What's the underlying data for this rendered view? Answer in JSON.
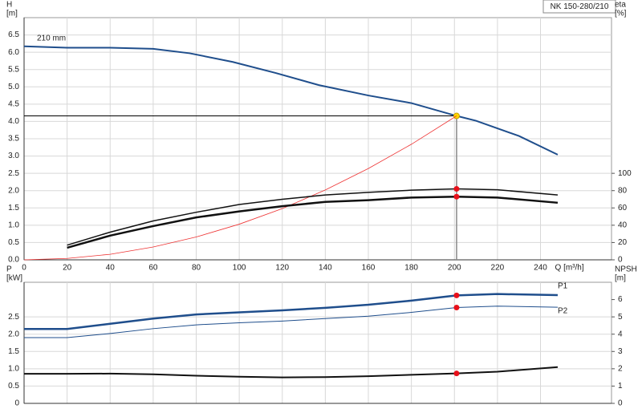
{
  "chart_data": [
    {
      "type": "line",
      "title": "NK 150-280/210",
      "ylabel": "H",
      "yunit": "[m]",
      "y2label": "eta",
      "y2unit": "[%]",
      "xlabel": "Q [m³/h]",
      "xlim": [
        0,
        273
      ],
      "xticks": [
        0,
        20,
        40,
        60,
        80,
        100,
        120,
        140,
        160,
        180,
        200,
        220,
        240
      ],
      "ylim": [
        0,
        7
      ],
      "yticks": [
        {
          "value": 0,
          "label": "0.0"
        },
        0.5,
        {
          "value": 1,
          "label": "1.0"
        },
        1.5,
        {
          "value": 2,
          "label": "2.0"
        },
        2.5,
        {
          "value": 3,
          "label": "3.0"
        },
        3.5,
        {
          "value": 4,
          "label": "4.0"
        },
        4.5,
        {
          "value": 5,
          "label": "5.0"
        },
        5.5,
        {
          "value": 6,
          "label": "6.0"
        },
        6.5
      ],
      "y2lim": [
        0,
        280
      ],
      "y2ticks": [
        0,
        20,
        40,
        60,
        80,
        100
      ],
      "grid": true,
      "xtick_labels": true,
      "operating_point": {
        "x": 201,
        "y": 4.16
      },
      "series": [
        {
          "name": "210 mm",
          "color": "#1f4e8c",
          "width": 2,
          "marker": "#ffd700",
          "x": [
            0,
            20,
            40,
            60,
            77,
            97,
            117,
            137,
            160,
            180,
            201,
            210,
            230,
            248
          ],
          "values": [
            6.17,
            6.13,
            6.13,
            6.1,
            5.97,
            5.72,
            5.4,
            5.05,
            4.75,
            4.53,
            4.16,
            4.02,
            3.58,
            3.04
          ]
        },
        {
          "color": "#ee3333",
          "width": 0.8,
          "x": [
            0,
            20,
            40,
            60,
            80,
            100,
            120,
            140,
            160,
            180,
            201
          ],
          "values": [
            0,
            0.04,
            0.16,
            0.37,
            0.66,
            1.03,
            1.48,
            2.02,
            2.64,
            3.34,
            4.16
          ]
        },
        {
          "color": "#111111",
          "width": 1.5,
          "axis": "y2",
          "marker": "#e8101a",
          "x": [
            20,
            40,
            60,
            80,
            100,
            120,
            140,
            160,
            180,
            201,
            220,
            248
          ],
          "values": [
            17,
            32,
            45,
            55,
            64,
            70,
            75,
            78,
            80.5,
            82,
            81,
            75
          ]
        },
        {
          "color": "#111111",
          "width": 2.5,
          "axis": "y2",
          "marker": "#e8101a",
          "x": [
            20,
            40,
            60,
            80,
            100,
            120,
            140,
            160,
            180,
            201,
            220,
            248
          ],
          "values": [
            14,
            28,
            39,
            49,
            56,
            62,
            67,
            69,
            72,
            73,
            72,
            66
          ]
        }
      ]
    },
    {
      "type": "line",
      "ylabel": "P",
      "yunit": "[kW]",
      "y2label": "NPSH",
      "y2unit": "[m]",
      "xlim": [
        0,
        273
      ],
      "xticks": [
        0,
        20,
        40,
        60,
        80,
        100,
        120,
        140,
        160,
        180,
        200,
        220,
        240
      ],
      "ylim": [
        0,
        3.5
      ],
      "yticks": [
        0,
        0.5,
        {
          "value": 1,
          "label": "1.0"
        },
        1.5,
        {
          "value": 2,
          "label": "2.0"
        },
        2.5
      ],
      "y2lim": [
        0,
        7
      ],
      "y2ticks": [
        0,
        1,
        2,
        3,
        4,
        5,
        6
      ],
      "grid": true,
      "xtick_labels": false,
      "operating_point": {
        "x": 201
      },
      "series": [
        {
          "name": "P1",
          "color": "#1f4e8c",
          "width": 2.5,
          "marker": "#e8101a",
          "x": [
            0,
            20,
            40,
            60,
            80,
            100,
            120,
            140,
            160,
            180,
            201,
            220,
            248
          ],
          "values": [
            2.15,
            2.15,
            2.3,
            2.45,
            2.57,
            2.63,
            2.69,
            2.76,
            2.85,
            2.97,
            3.12,
            3.16,
            3.13
          ]
        },
        {
          "name": "P2",
          "color": "#1f4e8c",
          "width": 1,
          "marker": "#e8101a",
          "x": [
            0,
            20,
            40,
            60,
            80,
            100,
            120,
            140,
            160,
            180,
            201,
            220,
            248
          ],
          "values": [
            1.9,
            1.9,
            2.02,
            2.16,
            2.27,
            2.33,
            2.38,
            2.45,
            2.52,
            2.63,
            2.77,
            2.81,
            2.78
          ]
        },
        {
          "color": "#111111",
          "width": 2,
          "axis": "y2",
          "marker": "#e8101a",
          "x": [
            0,
            20,
            40,
            60,
            80,
            100,
            120,
            140,
            160,
            180,
            201,
            220,
            248
          ],
          "values": [
            1.71,
            1.71,
            1.72,
            1.68,
            1.6,
            1.54,
            1.5,
            1.52,
            1.57,
            1.65,
            1.73,
            1.83,
            2.1
          ]
        }
      ]
    }
  ]
}
